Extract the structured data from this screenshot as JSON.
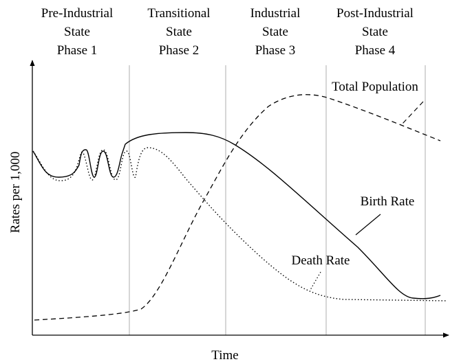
{
  "phases": [
    [
      "Pre-Industrial",
      "State",
      "Phase 1"
    ],
    [
      "Transitional",
      "State",
      "Phase 2"
    ],
    [
      "Industrial",
      "State",
      "Phase 3"
    ],
    [
      "Post-Industrial",
      "State",
      "Phase 4"
    ]
  ],
  "curve_labels": {
    "total_population": "Total Population",
    "birth_rate": "Birth Rate",
    "death_rate": "Death Rate"
  },
  "axis_labels": {
    "y": "Rates per 1,000",
    "x": "Time"
  }
}
